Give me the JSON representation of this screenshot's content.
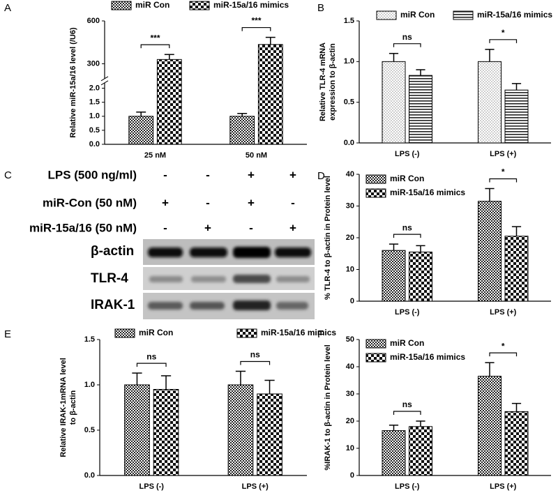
{
  "chart_data": [
    {
      "panel": "A",
      "type": "bar",
      "ylabel": [
        "Relative miR-15a/16 level (/U6)"
      ],
      "categories": [
        "25 nM",
        "50 nM"
      ],
      "series": [
        {
          "name": "miR Con",
          "pattern": "checker-fine",
          "values": [
            1.0,
            1.0
          ],
          "errors": [
            0.15,
            0.1
          ]
        },
        {
          "name": "miR-15a/16 mimics",
          "pattern": "checker",
          "values": [
            330,
            435
          ],
          "errors": [
            35,
            50
          ]
        }
      ],
      "ylim_segments": [
        [
          0,
          2.2
        ],
        [
          194,
          600
        ]
      ],
      "yticks": [
        {
          "value": 0,
          "label": "0.0"
        },
        {
          "value": 0.5,
          "label": "0.5"
        },
        {
          "value": 1,
          "label": "1.0"
        },
        {
          "value": 1.5,
          "label": "1.5"
        },
        {
          "value": 2,
          "label": "2.0"
        },
        300,
        600
      ],
      "significance": [
        "***",
        "***"
      ],
      "legend": "top"
    },
    {
      "panel": "B",
      "type": "bar",
      "ylabel": [
        "Relative TLR-4 mRNA",
        "expression to  β-actin"
      ],
      "categories": [
        "LPS (-)",
        "LPS (+)"
      ],
      "series": [
        {
          "name": "miR Con",
          "pattern": "dots",
          "values": [
            1.0,
            1.0
          ],
          "errors": [
            0.1,
            0.15
          ]
        },
        {
          "name": "miR-15a/16 mimics",
          "pattern": "hlines",
          "values": [
            0.83,
            0.65
          ],
          "errors": [
            0.07,
            0.08
          ]
        }
      ],
      "ylim": [
        0,
        1.5
      ],
      "yticks": [
        {
          "value": 0,
          "label": "0.0"
        },
        {
          "value": 0.5,
          "label": "0.5"
        },
        {
          "value": 1,
          "label": "1.0"
        },
        {
          "value": 1.5,
          "label": "1.5"
        }
      ],
      "significance": [
        "ns",
        "*"
      ],
      "legend": "top"
    },
    {
      "panel": "D",
      "type": "bar",
      "ylabel": [
        "% TLR-4 to  β-actin in Protein level"
      ],
      "categories": [
        "LPS (-)",
        "LPS (+)"
      ],
      "series": [
        {
          "name": "miR Con",
          "pattern": "checker-fine",
          "values": [
            16,
            31.5
          ],
          "errors": [
            2,
            4
          ]
        },
        {
          "name": "miR-15a/16 mimics",
          "pattern": "checker",
          "values": [
            15.5,
            20.5
          ],
          "errors": [
            2,
            3
          ]
        }
      ],
      "ylim": [
        0,
        40
      ],
      "yticks": [
        0,
        10,
        20,
        30,
        40
      ],
      "significance": [
        "ns",
        "*"
      ],
      "legend": "upper left"
    },
    {
      "panel": "E",
      "type": "bar",
      "ylabel": [
        "Relative IRAK-1mRNA level",
        "to β-actin"
      ],
      "categories": [
        "LPS (-)",
        "LPS (+)"
      ],
      "series": [
        {
          "name": "miR Con",
          "pattern": "checker-fine",
          "values": [
            1.0,
            1.0
          ],
          "errors": [
            0.13,
            0.15
          ]
        },
        {
          "name": "miR-15a/16 mimics",
          "pattern": "checker",
          "values": [
            0.95,
            0.9
          ],
          "errors": [
            0.15,
            0.15
          ]
        }
      ],
      "ylim": [
        0,
        1.5
      ],
      "yticks": [
        {
          "value": 0,
          "label": "0.0"
        },
        {
          "value": 0.5,
          "label": "0.5"
        },
        {
          "value": 1,
          "label": "1.0"
        },
        {
          "value": 1.5,
          "label": "1.5"
        }
      ],
      "significance": [
        "ns",
        "ns"
      ],
      "legend": "top"
    },
    {
      "panel": "F",
      "type": "bar",
      "ylabel": [
        "%IRAK-1 to  β-actin in Protein level"
      ],
      "categories": [
        "LPS (-)",
        "LPS (+)"
      ],
      "series": [
        {
          "name": "miR Con",
          "pattern": "checker-fine",
          "values": [
            16.5,
            36.5
          ],
          "errors": [
            2,
            5
          ]
        },
        {
          "name": "miR-15a/16 mimics",
          "pattern": "checker",
          "values": [
            18,
            23.5
          ],
          "errors": [
            2,
            3
          ]
        }
      ],
      "ylim": [
        0,
        50
      ],
      "yticks": [
        0,
        10,
        20,
        30,
        40,
        50
      ],
      "significance": [
        "ns",
        "*"
      ],
      "legend": "upper left"
    }
  ],
  "blot": {
    "panel": "C",
    "conditions": [
      {
        "label": "LPS (500 ng/ml)",
        "lanes": [
          "-",
          "-",
          "+",
          "+"
        ]
      },
      {
        "label": "miR-Con (50 nM)",
        "lanes": [
          "+",
          "-",
          "+",
          "-"
        ]
      },
      {
        "label": "miR-15a/16 (50 nM)",
        "lanes": [
          "-",
          "+",
          "-",
          "+"
        ]
      }
    ],
    "bands": [
      "β-actin",
      "TLR-4",
      "IRAK-1"
    ]
  }
}
